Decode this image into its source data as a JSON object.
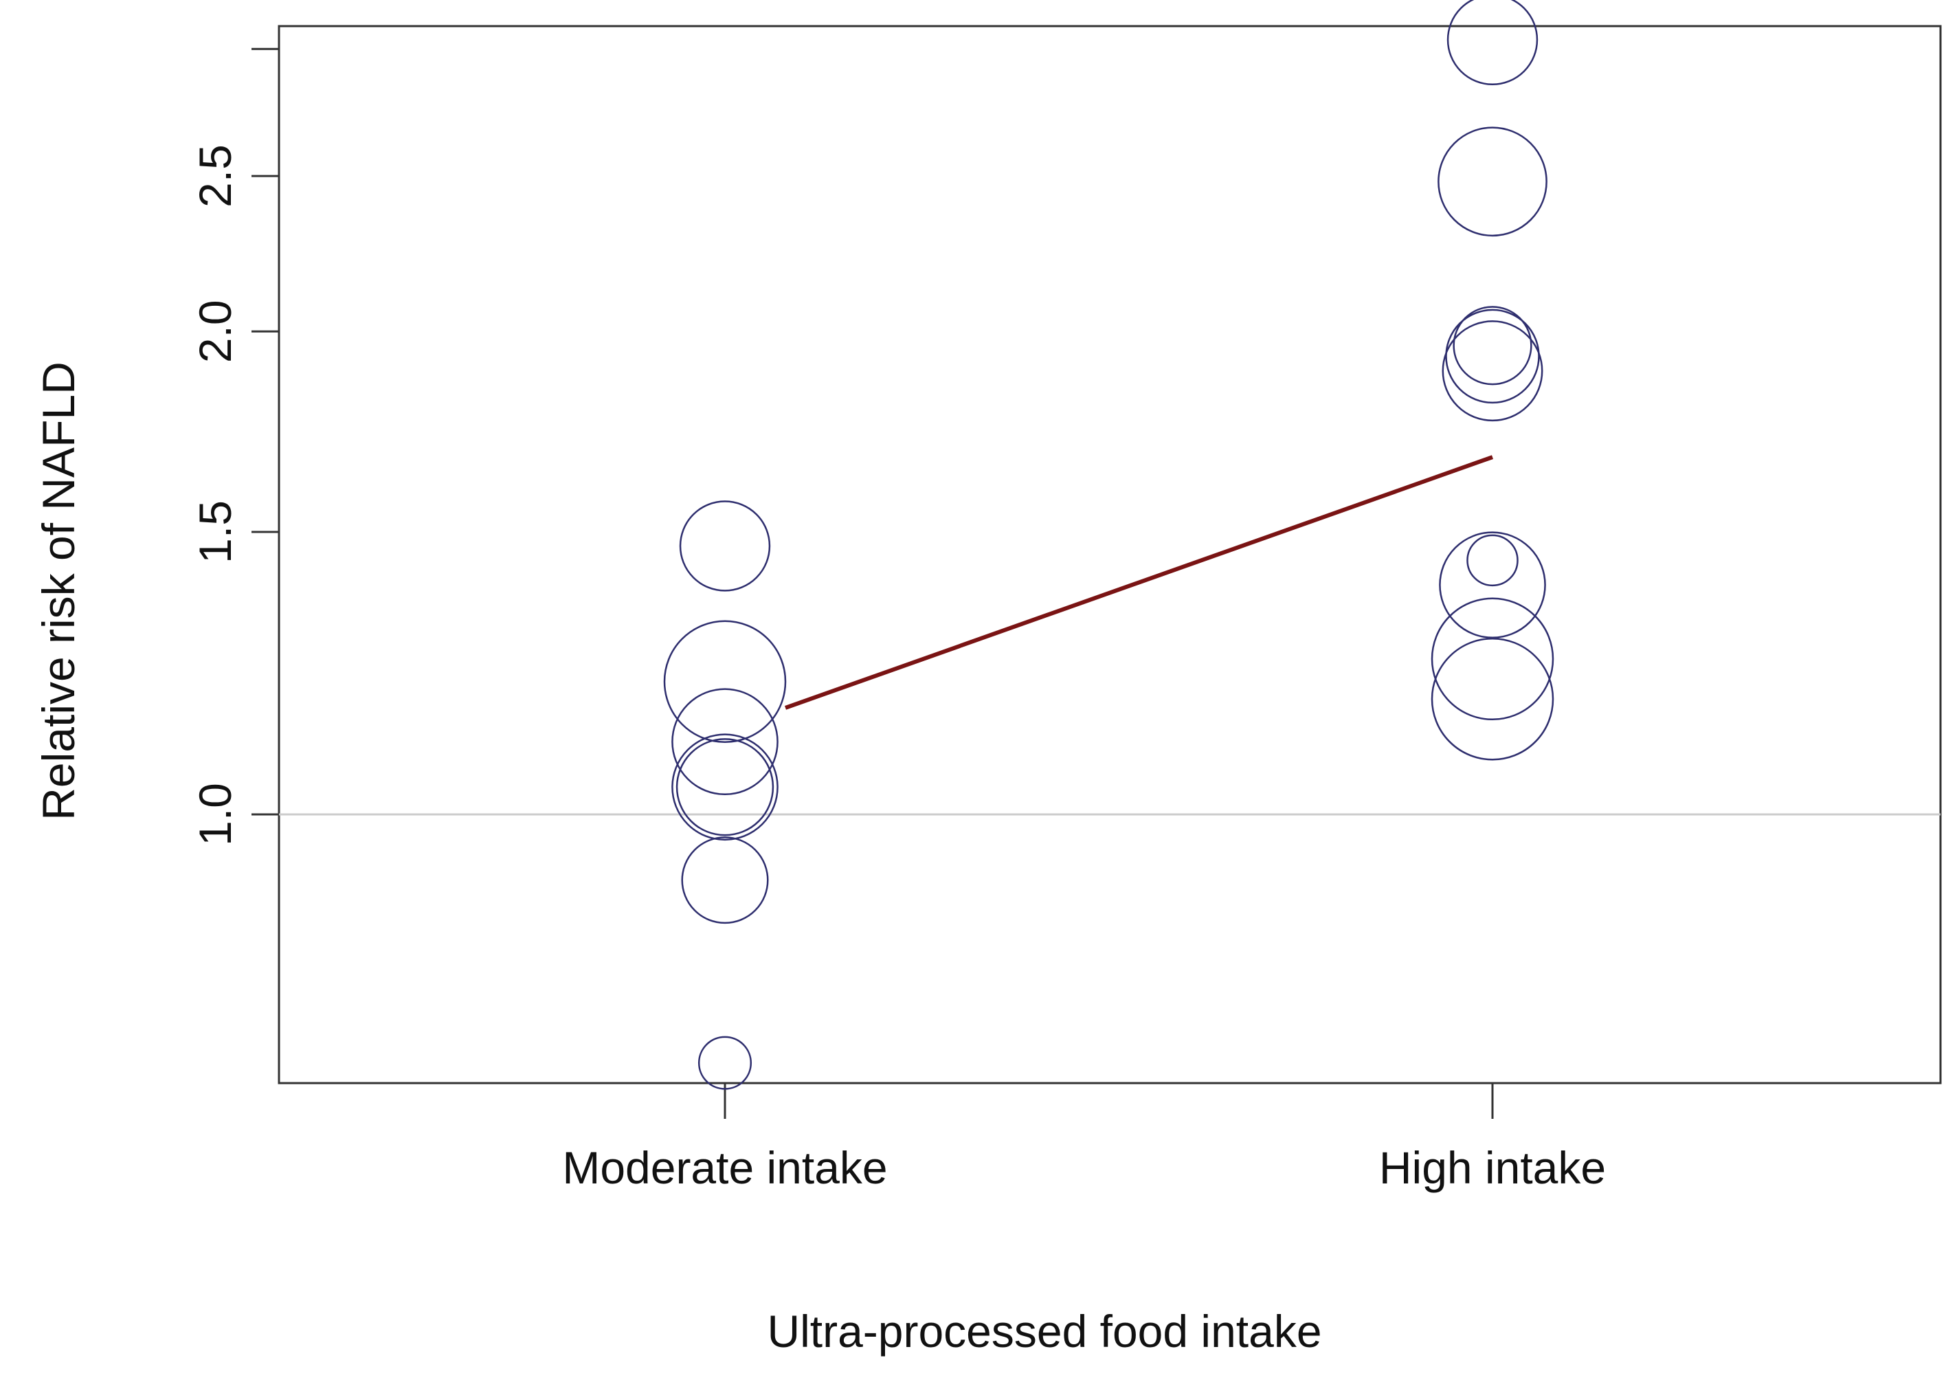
{
  "chart_data": {
    "type": "scatter",
    "title": "",
    "xlabel": "Ultra-processed food intake",
    "ylabel": "Relative risk of NAFLD",
    "y_scale": "log",
    "ylim": [
      0.68,
      3.1
    ],
    "y_ticks": [
      1.0,
      1.5,
      2.0,
      2.5,
      3.0
    ],
    "y_tick_labels": [
      "1.0",
      "1.5",
      "2.0",
      "2.5",
      ""
    ],
    "categories": [
      "Moderate intake",
      "High intake"
    ],
    "reference_line": 1.0,
    "grid": false,
    "legend": "none",
    "points": [
      {
        "category": "Moderate intake",
        "y": 1.47,
        "weight": 0.45
      },
      {
        "category": "Moderate intake",
        "y": 1.21,
        "weight": 1.0
      },
      {
        "category": "Moderate intake",
        "y": 1.11,
        "weight": 0.7
      },
      {
        "category": "Moderate intake",
        "y": 1.04,
        "weight": 0.7
      },
      {
        "category": "Moderate intake",
        "y": 1.04,
        "weight": 0.55
      },
      {
        "category": "Moderate intake",
        "y": 0.91,
        "weight": 0.4
      },
      {
        "category": "Moderate intake",
        "y": 0.7,
        "weight": 0.08
      },
      {
        "category": "High intake",
        "y": 3.04,
        "weight": 0.45
      },
      {
        "category": "High intake",
        "y": 2.48,
        "weight": 0.75
      },
      {
        "category": "High intake",
        "y": 1.93,
        "weight": 0.5
      },
      {
        "category": "High intake",
        "y": 1.89,
        "weight": 0.6
      },
      {
        "category": "High intake",
        "y": 1.96,
        "weight": 0.3
      },
      {
        "category": "High intake",
        "y": 1.44,
        "weight": 0.07
      },
      {
        "category": "High intake",
        "y": 1.39,
        "weight": 0.7
      },
      {
        "category": "High intake",
        "y": 1.25,
        "weight": 1.0
      },
      {
        "category": "High intake",
        "y": 1.18,
        "weight": 1.0
      }
    ],
    "regression_line": {
      "from": {
        "category": "Moderate intake",
        "y": 1.13
      },
      "to": {
        "category": "High intake",
        "y": 1.67
      }
    },
    "colors": {
      "points": "#2e2e6e",
      "line": "#7a1414",
      "reference": "#cccccc",
      "axis": "#333333"
    }
  }
}
